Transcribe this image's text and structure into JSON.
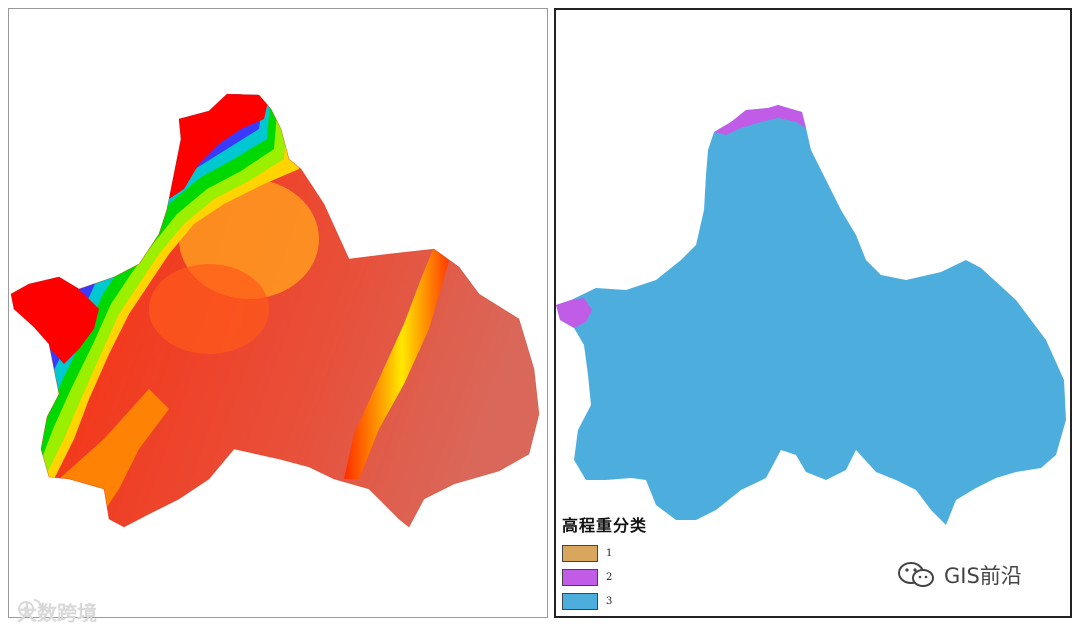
{
  "maps": {
    "left": {
      "type": "elevation-raster"
    },
    "right": {
      "type": "reclassified-raster",
      "legend": {
        "title": "高程重分类",
        "items": [
          {
            "label": "1",
            "color": "#D9A65E"
          },
          {
            "label": "2",
            "color": "#C15CE6"
          },
          {
            "label": "3",
            "color": "#4DAEDE"
          }
        ]
      }
    }
  },
  "watermarks": {
    "left": "大数跨境",
    "right": "GIS前沿"
  },
  "colors": {
    "elevation_high": "#FF0000",
    "elevation_mid": "#00D800",
    "elevation_low": "#E8503A",
    "class3_fill": "#4DAEDE"
  },
  "icons": [
    "weibo-logo-icon",
    "wechat-logo-icon"
  ]
}
